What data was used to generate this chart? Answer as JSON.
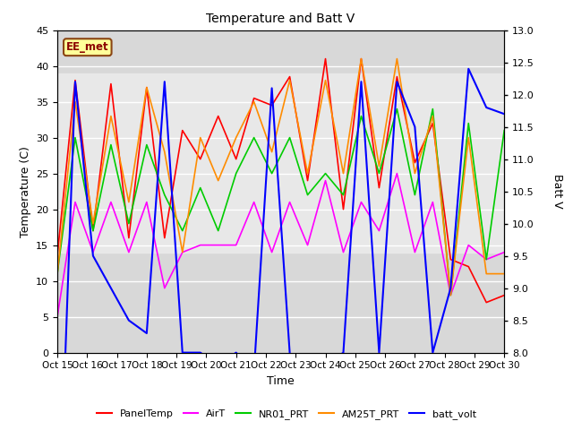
{
  "title": "Temperature and Batt V",
  "xlabel": "Time",
  "ylabel_left": "Temperature (C)",
  "ylabel_right": "Batt V",
  "ylim_left": [
    0,
    45
  ],
  "ylim_right": [
    8.0,
    13.0
  ],
  "site_label": "EE_met",
  "background_color": "#ffffff",
  "plot_bg_color": "#d8d8d8",
  "shaded_band_lo": 14,
  "shaded_band_hi": 39,
  "shaded_band_color": "#e8e8e8",
  "x_labels": [
    "Oct 15",
    "Oct 16",
    "Oct 17",
    "Oct 18",
    "Oct 19",
    "Oct 20",
    "Oct 21",
    "Oct 22",
    "Oct 23",
    "Oct 24",
    "Oct 25",
    "Oct 26",
    "Oct 27",
    "Oct 28",
    "Oct 29",
    "Oct 30"
  ],
  "PanelTemp_color": "#ff0000",
  "AirT_color": "#ff00ff",
  "NR01_PRT_color": "#00cc00",
  "AM25T_PRT_color": "#ff8c00",
  "batt_volt_color": "#0000ff",
  "PanelTemp": [
    13.5,
    38,
    17,
    37.5,
    16,
    37,
    16,
    31,
    27,
    33,
    27,
    35.5,
    34.5,
    38.5,
    24,
    41,
    20,
    41,
    23,
    38.5,
    26.5,
    32,
    13,
    12,
    7,
    8
  ],
  "AirT": [
    5,
    21,
    14,
    21,
    14,
    21,
    9,
    14,
    15,
    15,
    15,
    21,
    14,
    21,
    15,
    24,
    14,
    21,
    17,
    25,
    14,
    21,
    8,
    15,
    13,
    14
  ],
  "NR01_PRT": [
    11,
    30,
    17,
    29,
    18,
    29,
    22,
    17,
    23,
    17,
    25,
    30,
    25,
    30,
    22,
    25,
    22,
    33,
    25,
    34,
    22,
    34,
    8,
    32,
    13,
    31
  ],
  "AM25T_PRT": [
    11,
    35,
    18,
    33,
    21,
    37,
    28,
    14,
    30,
    24,
    30,
    35,
    28,
    38,
    25,
    38,
    25,
    41,
    26,
    41,
    25,
    33,
    8,
    30,
    11,
    11
  ],
  "batt_volt": [
    4.5,
    12.2,
    9.5,
    9.0,
    8.5,
    8.3,
    12.2,
    8.0,
    8.0,
    7.8,
    8.0,
    7.7,
    12.1,
    8.0,
    4.8,
    7.8,
    8.0,
    12.2,
    8.0,
    12.2,
    11.5,
    8.0,
    9.0,
    12.4,
    11.8,
    11.7
  ],
  "legend_labels": [
    "PanelTemp",
    "AirT",
    "NR01_PRT",
    "AM25T_PRT",
    "batt_volt"
  ]
}
